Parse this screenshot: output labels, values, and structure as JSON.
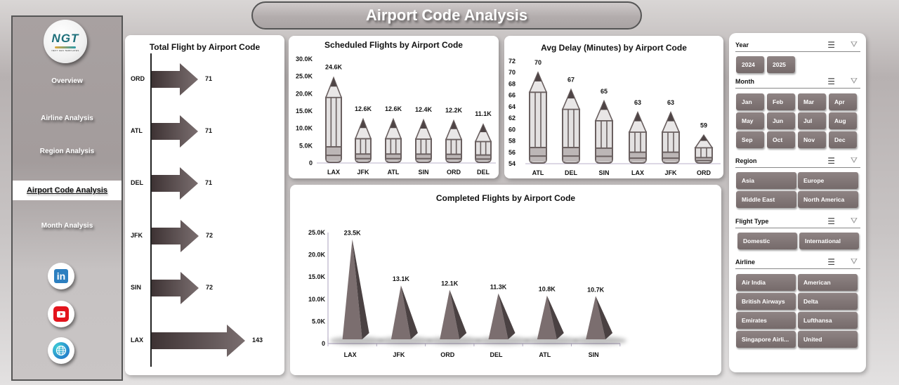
{
  "header": {
    "title": "Airport Code Analysis"
  },
  "sidebar": {
    "logo": {
      "text": "NGT",
      "subtext": "NEXT GEN TEMPLATES"
    },
    "items": [
      {
        "label": "Overview"
      },
      {
        "label": "Airline Analysis"
      },
      {
        "label": "Region Analysis"
      },
      {
        "label": "Airport Code Analysis",
        "active": true
      },
      {
        "label": "Month Analysis"
      }
    ],
    "social": [
      {
        "icon": "linkedin-icon",
        "glyph": "in"
      },
      {
        "icon": "youtube-icon"
      },
      {
        "icon": "globe-icon",
        "glyph": "🌐"
      }
    ]
  },
  "charts": {
    "total": {
      "title": "Total Flight by Airport Code"
    },
    "scheduled": {
      "title": "Scheduled Flights by Airport Code"
    },
    "delay": {
      "title": "Avg Delay (Minutes) by Airport Code"
    },
    "completed": {
      "title": "Completed Flights by Airport Code"
    }
  },
  "chart_data": [
    {
      "type": "bar",
      "orientation": "horizontal",
      "title": "Total Flight by Airport Code",
      "categories": [
        "ORD",
        "ATL",
        "DEL",
        "JFK",
        "SIN",
        "LAX"
      ],
      "values": [
        71,
        71,
        71,
        72,
        72,
        143
      ],
      "labels": [
        "71",
        "71",
        "71",
        "72",
        "72",
        "143"
      ],
      "xlabel": "",
      "ylabel": "",
      "grid": false,
      "legend": "none"
    },
    {
      "type": "bar",
      "title": "Scheduled Flights by Airport Code",
      "categories": [
        "LAX",
        "JFK",
        "ATL",
        "SIN",
        "ORD",
        "DEL"
      ],
      "values": [
        24600,
        12600,
        12600,
        12400,
        12200,
        11100
      ],
      "labels": [
        "24.6K",
        "12.6K",
        "12.6K",
        "12.4K",
        "12.2K",
        "11.1K"
      ],
      "yticks": [
        "0",
        "5.0K",
        "10.0K",
        "15.0K",
        "20.0K",
        "25.0K",
        "30.0K"
      ],
      "ylim": [
        0,
        30000
      ],
      "grid": false,
      "legend": "none"
    },
    {
      "type": "bar",
      "title": "Avg Delay (Minutes) by Airport Code",
      "categories": [
        "ATL",
        "DEL",
        "SIN",
        "LAX",
        "JFK",
        "ORD"
      ],
      "values": [
        70,
        67,
        65,
        63,
        63,
        59
      ],
      "labels": [
        "70",
        "67",
        "65",
        "63",
        "63",
        "59"
      ],
      "yticks": [
        "54",
        "56",
        "58",
        "60",
        "62",
        "64",
        "66",
        "68",
        "70",
        "72"
      ],
      "ylim": [
        54,
        72
      ],
      "grid": false,
      "legend": "none"
    },
    {
      "type": "bar",
      "style": "pyramid",
      "title": "Completed Flights by Airport Code",
      "categories": [
        "LAX",
        "JFK",
        "ORD",
        "DEL",
        "ATL",
        "SIN"
      ],
      "values": [
        23500,
        13100,
        12100,
        11300,
        10800,
        10700
      ],
      "labels": [
        "23.5K",
        "13.1K",
        "12.1K",
        "11.3K",
        "10.8K",
        "10.7K"
      ],
      "yticks": [
        "0",
        "5.0K",
        "10.0K",
        "15.0K",
        "20.0K",
        "25.0K"
      ],
      "ylim": [
        0,
        25000
      ],
      "grid": false,
      "legend": "none"
    }
  ],
  "slicers": {
    "year": {
      "label": "Year",
      "options": [
        "2024",
        "2025"
      ]
    },
    "month": {
      "label": "Month",
      "options": [
        "Jan",
        "Feb",
        "Mar",
        "Apr",
        "May",
        "Jun",
        "Jul",
        "Aug",
        "Sep",
        "Oct",
        "Nov",
        "Dec"
      ]
    },
    "region": {
      "label": "Region",
      "options": [
        "Asia",
        "Europe",
        "Middle East",
        "North America"
      ]
    },
    "flight_type": {
      "label": "Flight Type",
      "options": [
        "Domestic",
        "International"
      ]
    },
    "airline": {
      "label": "Airline",
      "options": [
        "Air India",
        "American",
        "British Airways",
        "Delta",
        "Emirates",
        "Lufthansa",
        "Singapore Airli...",
        "United"
      ]
    },
    "icons": {
      "multiselect": "☰",
      "clear": "⛛"
    }
  },
  "colors": {
    "bar_dark": "#4a3f40",
    "bar_light": "#7b6e6f",
    "slicer_btn": "#7f7373",
    "pencil_body": "#dcdcdc"
  }
}
